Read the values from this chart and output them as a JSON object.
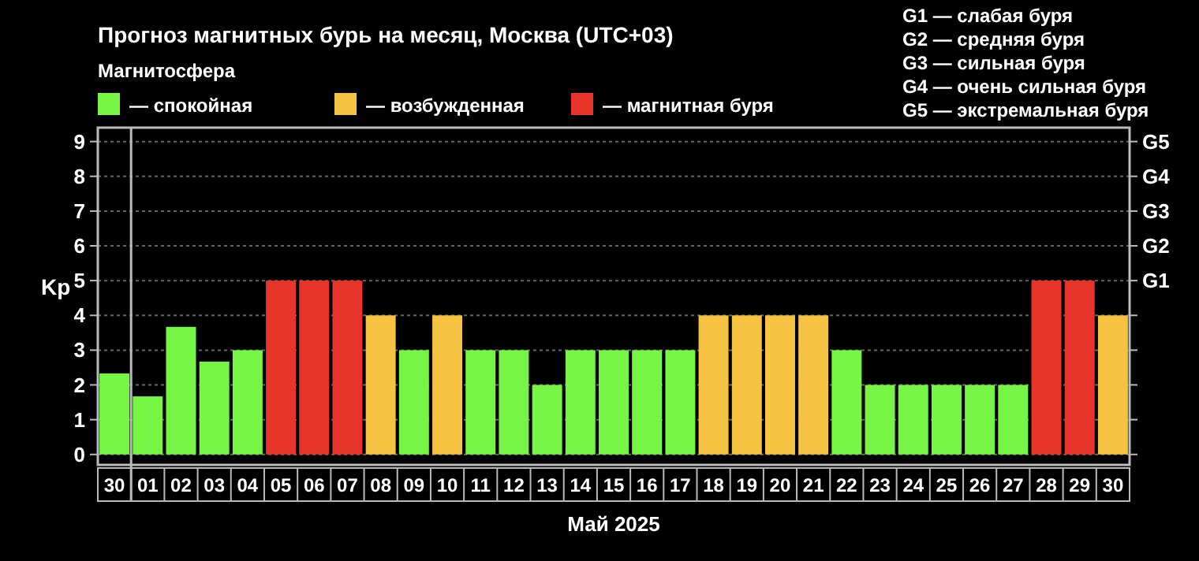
{
  "chart_data": {
    "type": "bar",
    "title": "Прогноз магнитных бурь на месяц, Москва (UTC+03)",
    "legend_title": "Магнитосфера",
    "xlabel": "Май 2025",
    "ylabel": "Kp",
    "y2_categories": [
      "G5",
      "G4",
      "G3",
      "G2",
      "G1",
      null,
      null,
      null,
      null,
      null
    ],
    "ref_lines": [
      {
        "axis": "x",
        "value": "01",
        "color": "#bbbbbb"
      }
    ],
    "annotations": [
      "G1 — слабая буря",
      "G2 — средняя буря",
      "G3 — сильная буря",
      "G4 — очень сильная буря",
      "G5 — экстремальная буря"
    ],
    "categories": [
      "30",
      "01",
      "02",
      "03",
      "04",
      "05",
      "06",
      "07",
      "08",
      "09",
      "10",
      "11",
      "12",
      "13",
      "14",
      "15",
      "16",
      "17",
      "18",
      "19",
      "20",
      "21",
      "22",
      "23",
      "24",
      "25",
      "26",
      "27",
      "28",
      "29",
      "30"
    ],
    "series": [
      {
        "name": "— спокойная",
        "color": "#77f545",
        "values": [
          2.33,
          1.67,
          3.67,
          2.67,
          3,
          null,
          null,
          null,
          null,
          3,
          null,
          3,
          3,
          2,
          3,
          3,
          3,
          3,
          null,
          null,
          null,
          null,
          3,
          2,
          2,
          2,
          2,
          2,
          null,
          null,
          null
        ]
      },
      {
        "name": "— возбужденная",
        "color": "#f5c242",
        "values": [
          null,
          null,
          null,
          null,
          null,
          null,
          null,
          null,
          4,
          null,
          4,
          null,
          null,
          null,
          null,
          null,
          null,
          null,
          4,
          4,
          4,
          4,
          null,
          null,
          null,
          null,
          null,
          null,
          null,
          null,
          4
        ]
      },
      {
        "name": "— магнитная буря",
        "color": "#e8352a",
        "values": [
          null,
          null,
          null,
          null,
          null,
          5,
          5,
          5,
          null,
          null,
          null,
          null,
          null,
          null,
          null,
          null,
          null,
          null,
          null,
          null,
          null,
          null,
          null,
          null,
          null,
          null,
          null,
          null,
          5,
          5,
          null
        ]
      }
    ],
    "ylim": [
      -0.3,
      9.4
    ],
    "yticks": [
      0,
      1,
      2,
      3,
      4,
      5,
      6,
      7,
      8,
      9
    ],
    "grid": "y",
    "legend": "top left"
  }
}
